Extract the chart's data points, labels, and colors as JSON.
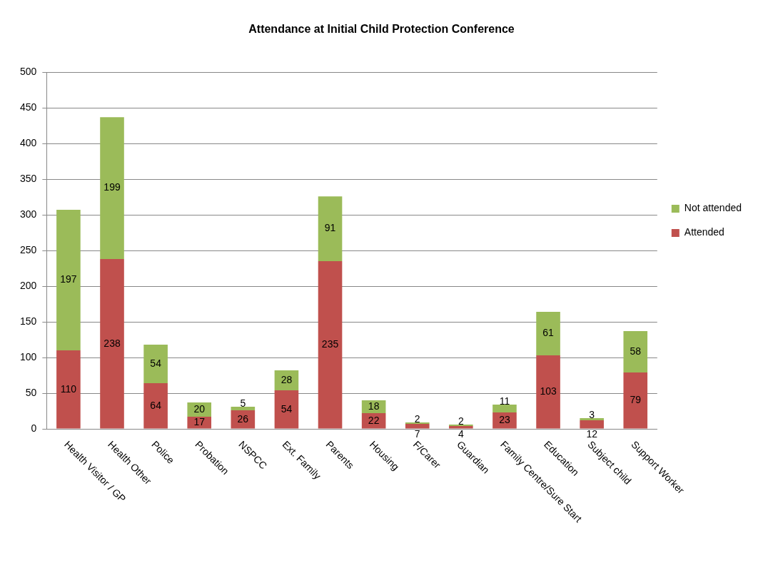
{
  "chart_data": {
    "type": "bar",
    "title": "Attendance at Initial Child Protection Conference",
    "categories": [
      "Health Visitor / GP",
      "Health Other",
      "Police",
      "Probation",
      "NSPCC",
      "Ext. Family",
      "Parents",
      "Housing",
      "F/Carer",
      "Guardian",
      "Family Centre/Sure Start",
      "Education",
      "Subject child",
      "Support Worker"
    ],
    "series": [
      {
        "name": "Attended",
        "color": "#c0504d",
        "values": [
          110,
          238,
          64,
          17,
          26,
          54,
          235,
          22,
          7,
          4,
          23,
          103,
          12,
          79
        ]
      },
      {
        "name": "Not attended",
        "color": "#9bbb59",
        "values": [
          197,
          199,
          54,
          20,
          5,
          28,
          91,
          18,
          2,
          2,
          11,
          61,
          3,
          58
        ]
      }
    ],
    "stacked": true,
    "ylim": [
      0,
      500
    ],
    "yticks": [
      0,
      50,
      100,
      150,
      200,
      250,
      300,
      350,
      400,
      450,
      500
    ],
    "grid": "y",
    "legend": "right",
    "data_labels": true
  }
}
